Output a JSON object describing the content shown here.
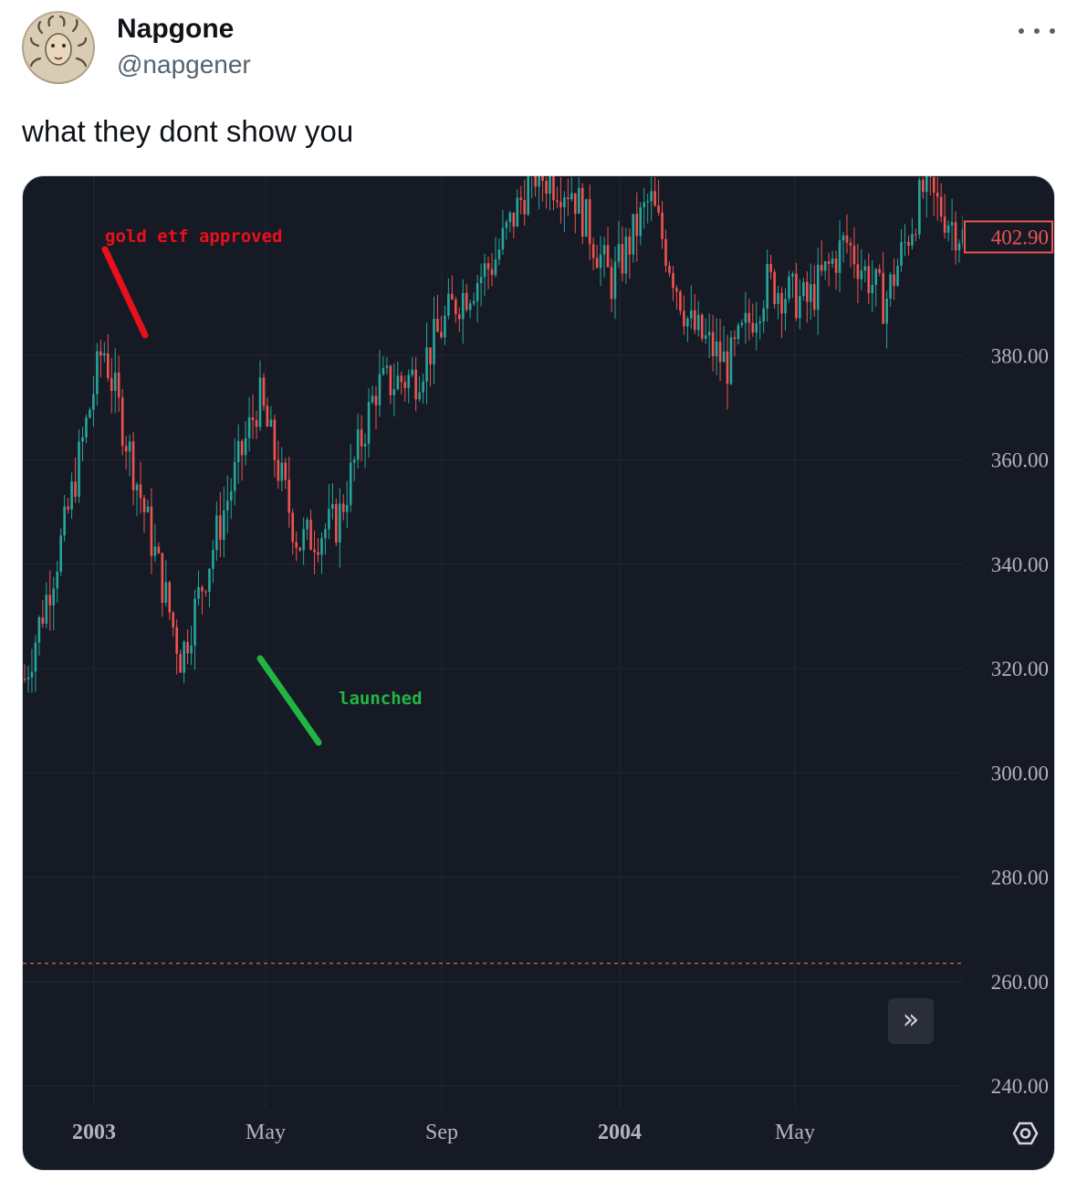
{
  "tweet": {
    "author_name": "Napgone",
    "author_handle": "@napgener",
    "text": "what they dont show you",
    "more_icon": "more-horizontal-icon"
  },
  "chart_data": {
    "type": "candlestick",
    "ylim": [
      235,
      412
    ],
    "y_ticks": [
      "380.00",
      "360.00",
      "340.00",
      "320.00",
      "300.00",
      "280.00",
      "260.00",
      "240.00"
    ],
    "x_ticks": [
      "2003",
      "May",
      "Sep",
      "2004",
      "May"
    ],
    "last_price": "402.90",
    "dashed_reference_level": 263.5,
    "colors": {
      "up": "#26a69a",
      "down": "#ef5350",
      "background": "#161a25",
      "grid": "#242833",
      "axis_text": "#b2b5be"
    },
    "annotations": [
      {
        "text": "gold etf approved",
        "color": "#e8101a"
      },
      {
        "text": "launched",
        "color": "#22b544"
      }
    ],
    "price_path": [
      {
        "period": "2002 end",
        "price": 318
      },
      {
        "period": "2003 Jan",
        "price": 346
      },
      {
        "period": "2003 Feb",
        "price": 382
      },
      {
        "period": "2003 Mar",
        "price": 352
      },
      {
        "period": "2003 Apr",
        "price": 322
      },
      {
        "period": "2003 May",
        "price": 348
      },
      {
        "period": "2003 May end",
        "price": 372
      },
      {
        "period": "2003 Jun",
        "price": 344
      },
      {
        "period": "2003 Jul",
        "price": 348
      },
      {
        "period": "2003 Aug",
        "price": 374
      },
      {
        "period": "2003 Sep",
        "price": 376
      },
      {
        "period": "2003 Oct",
        "price": 390
      },
      {
        "period": "2003 Nov",
        "price": 398
      },
      {
        "period": "2003 Dec",
        "price": 415
      },
      {
        "period": "2004 Jan",
        "price": 412
      },
      {
        "period": "2004 Feb",
        "price": 394
      },
      {
        "period": "2004 Mar",
        "price": 410
      },
      {
        "period": "2004 Apr",
        "price": 386
      },
      {
        "period": "2004 May",
        "price": 378
      },
      {
        "period": "2004 Jun",
        "price": 394
      },
      {
        "period": "2004 Jul",
        "price": 390
      },
      {
        "period": "2004 Aug",
        "price": 402
      },
      {
        "period": "2004 Sep",
        "price": 390
      },
      {
        "period": "2004 Oct",
        "price": 412
      },
      {
        "period": "2004 Oct end",
        "price": 402.9
      }
    ]
  },
  "controls": {
    "scroll_icon": "double-chevron-right-icon",
    "scroll_glyph": "»",
    "settings_icon": "settings-gear-icon"
  }
}
